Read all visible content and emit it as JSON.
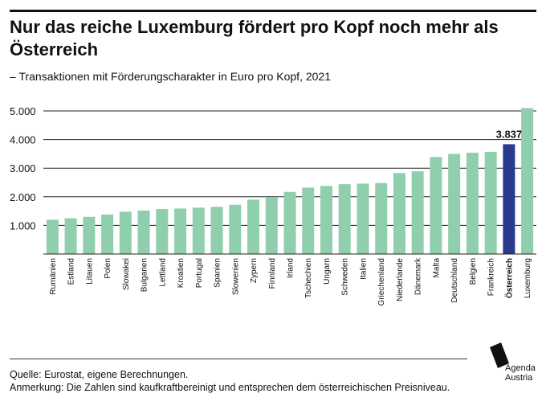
{
  "header": {
    "title": "Nur das reiche Luxemburg fördert pro Kopf noch mehr als Österreich",
    "subtitle": "– Transaktionen mit Förderungscharakter in Euro pro Kopf, 2021"
  },
  "footer": {
    "source": "Quelle: Eurostat, eigene Berechnungen.",
    "note": "Anmerkung: Die Zahlen sind kaufkraftbereinigt und entsprechen dem österreichischen Preisniveau."
  },
  "logo": {
    "line1": "Agenda",
    "line2": "Austria"
  },
  "colors": {
    "bar": "#8fcfae",
    "highlight": "#2a3a8c",
    "grid": "#222222",
    "text": "#111111"
  },
  "chart_data": {
    "type": "bar",
    "title": "Nur das reiche Luxemburg fördert pro Kopf noch mehr als Österreich",
    "subtitle": "– Transaktionen mit Förderungscharakter in Euro pro Kopf, 2021",
    "xlabel": "",
    "ylabel": "",
    "ylim": [
      0,
      5000
    ],
    "yticks": [
      1000,
      2000,
      3000,
      4000,
      5000
    ],
    "ytick_labels": [
      "1.000",
      "2.000",
      "3.000",
      "4.000",
      "5.000"
    ],
    "grid": true,
    "categories": [
      "Rumänien",
      "Estland",
      "Litauen",
      "Polen",
      "Slowakei",
      "Bulgarien",
      "Lettland",
      "Kroatien",
      "Portugal",
      "Spanien",
      "Slowenien",
      "Zypern",
      "Finnland",
      "Irland",
      "Tschechien",
      "Ungarn",
      "Schweden",
      "Italien",
      "Griechenland",
      "Niederlande",
      "Dänemark",
      "Malta",
      "Deutschland",
      "Belgien",
      "Frankreich",
      "Österreich",
      "Luxemburg"
    ],
    "values": [
      1200,
      1250,
      1300,
      1380,
      1480,
      1520,
      1570,
      1590,
      1620,
      1650,
      1720,
      1900,
      1990,
      2170,
      2320,
      2380,
      2440,
      2460,
      2480,
      2830,
      2890,
      3390,
      3500,
      3540,
      3570,
      3837,
      5100
    ],
    "highlight": "Österreich",
    "annotation": {
      "category": "Österreich",
      "label": "3.837"
    }
  }
}
